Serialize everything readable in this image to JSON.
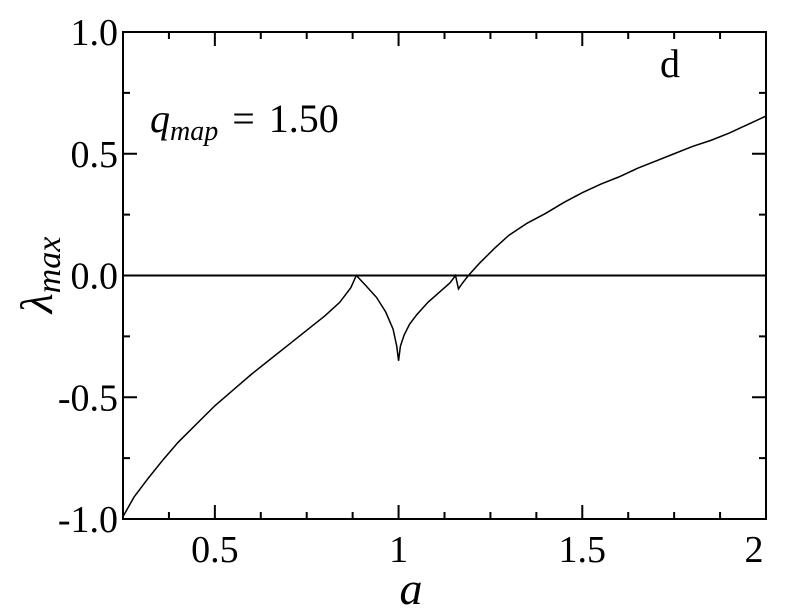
{
  "chart_data": {
    "type": "line",
    "panel_label": "d",
    "annotation": {
      "symbol": "q",
      "subscript": "map",
      "equals": "=",
      "value": "1.50"
    },
    "xlabel": "a",
    "ylabel_symbol": "λ",
    "ylabel_subscript": "max",
    "xlim": [
      0.25,
      2.0
    ],
    "ylim": [
      -1.0,
      1.0
    ],
    "x_ticks": [
      {
        "value": 0.5,
        "label": "0.5"
      },
      {
        "value": 1.0,
        "label": "1"
      },
      {
        "value": 1.5,
        "label": "1.5"
      },
      {
        "value": 2.0,
        "label": "2"
      }
    ],
    "y_ticks": [
      {
        "value": 1.0,
        "label": "1.0"
      },
      {
        "value": 0.5,
        "label": "0.5"
      },
      {
        "value": 0.0,
        "label": "0.0"
      },
      {
        "value": -0.5,
        "label": "-0.5"
      },
      {
        "value": -1.0,
        "label": "-1.0"
      }
    ],
    "x_minor_step": 0.125,
    "y_minor_step": 0.25,
    "reference_line_y": 0.0,
    "grid": false,
    "series": [
      {
        "color": "#000000",
        "points": [
          [
            0.25,
            -0.99
          ],
          [
            0.28,
            -0.91
          ],
          [
            0.32,
            -0.83
          ],
          [
            0.36,
            -0.755
          ],
          [
            0.4,
            -0.685
          ],
          [
            0.45,
            -0.61
          ],
          [
            0.5,
            -0.535
          ],
          [
            0.55,
            -0.47
          ],
          [
            0.6,
            -0.405
          ],
          [
            0.65,
            -0.345
          ],
          [
            0.7,
            -0.285
          ],
          [
            0.75,
            -0.225
          ],
          [
            0.8,
            -0.165
          ],
          [
            0.84,
            -0.11
          ],
          [
            0.87,
            -0.05
          ],
          [
            0.885,
            0.0
          ],
          [
            0.91,
            -0.04
          ],
          [
            0.94,
            -0.09
          ],
          [
            0.965,
            -0.15
          ],
          [
            0.985,
            -0.22
          ],
          [
            0.995,
            -0.29
          ],
          [
            1.0,
            -0.35
          ],
          [
            1.005,
            -0.29
          ],
          [
            1.015,
            -0.245
          ],
          [
            1.03,
            -0.2
          ],
          [
            1.05,
            -0.16
          ],
          [
            1.08,
            -0.11
          ],
          [
            1.11,
            -0.07
          ],
          [
            1.14,
            -0.03
          ],
          [
            1.155,
            0.0
          ],
          [
            1.163,
            -0.055
          ],
          [
            1.172,
            -0.035
          ],
          [
            1.19,
            0.0
          ],
          [
            1.22,
            0.05
          ],
          [
            1.26,
            0.11
          ],
          [
            1.3,
            0.165
          ],
          [
            1.35,
            0.215
          ],
          [
            1.4,
            0.255
          ],
          [
            1.45,
            0.3
          ],
          [
            1.5,
            0.34
          ],
          [
            1.55,
            0.375
          ],
          [
            1.6,
            0.405
          ],
          [
            1.65,
            0.44
          ],
          [
            1.7,
            0.47
          ],
          [
            1.75,
            0.5
          ],
          [
            1.8,
            0.53
          ],
          [
            1.85,
            0.555
          ],
          [
            1.9,
            0.585
          ],
          [
            1.95,
            0.62
          ],
          [
            2.0,
            0.655
          ]
        ]
      }
    ]
  }
}
